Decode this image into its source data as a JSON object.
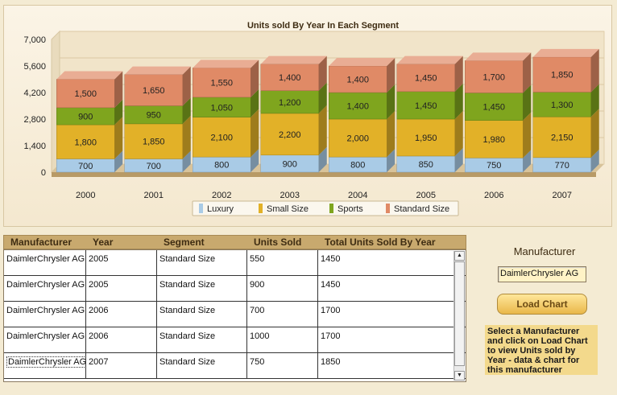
{
  "chart_data": {
    "type": "bar",
    "stacked": true,
    "title": "Units sold By Year In Each Segment",
    "categories": [
      "2000",
      "2001",
      "2002",
      "2003",
      "2004",
      "2005",
      "2006",
      "2007"
    ],
    "y_ticks": [
      "0",
      "1,400",
      "2,800",
      "4,200",
      "5,600",
      "7,000"
    ],
    "ylim": [
      0,
      7000
    ],
    "legend_position": "bottom",
    "series": [
      {
        "name": "Luxury",
        "color": "#a9cbe6",
        "values": [
          700,
          700,
          800,
          900,
          800,
          850,
          750,
          770
        ]
      },
      {
        "name": "Small Size",
        "color": "#e2b128",
        "values": [
          1800,
          1850,
          2100,
          2200,
          2000,
          1950,
          1980,
          2150
        ]
      },
      {
        "name": "Sports",
        "color": "#7fa51e",
        "values": [
          900,
          950,
          1050,
          1200,
          1400,
          1450,
          1450,
          1300
        ]
      },
      {
        "name": "Standard Size",
        "color": "#e08a66",
        "values": [
          1500,
          1650,
          1550,
          1400,
          1400,
          1450,
          1700,
          1850
        ]
      }
    ]
  },
  "grid": {
    "headers": [
      "Manufacturer",
      "Year",
      "Segment",
      "Units Sold",
      "Total Units Sold By Year"
    ],
    "rows": [
      [
        "DaimlerChrysler AG",
        "2005",
        "Standard Size",
        "550",
        "1450"
      ],
      [
        "DaimlerChrysler AG",
        "2005",
        "Standard Size",
        "900",
        "1450"
      ],
      [
        "DaimlerChrysler AG",
        "2006",
        "Standard Size",
        "700",
        "1700"
      ],
      [
        "DaimlerChrysler AG",
        "2006",
        "Standard Size",
        "1000",
        "1700"
      ],
      [
        "DaimlerChrysler AG",
        "2007",
        "Standard Size",
        "750",
        "1850"
      ]
    ]
  },
  "side_panel": {
    "title": "Manufacturer",
    "selected_value": "DaimlerChrysler AG",
    "load_button": "Load Chart",
    "help_text": "Select a Manufacturer and click on Load Chart to view Units sold by Year - data & chart for this manufacturer"
  }
}
